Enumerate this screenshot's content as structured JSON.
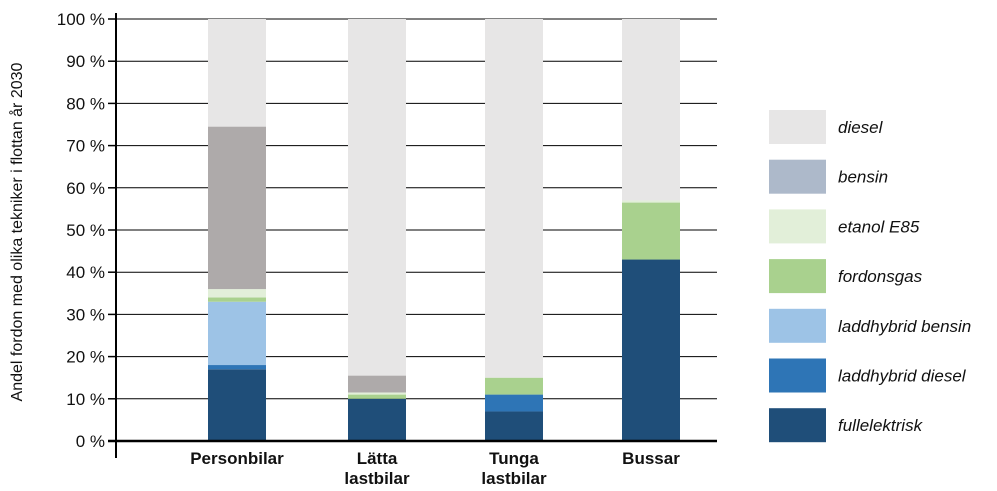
{
  "chart_data": {
    "type": "bar",
    "stacked": true,
    "title": "",
    "xlabel": "",
    "ylabel": "Andel fordon med olika tekniker i flottan år 2030",
    "ylim": [
      0,
      100
    ],
    "yticks": [
      "0 %",
      "10 %",
      "20 %",
      "30 %",
      "40 %",
      "50 %",
      "60 %",
      "70 %",
      "80 %",
      "90 %",
      "100 %"
    ],
    "grid": true,
    "legend_position": "right",
    "categories": [
      [
        "Personbilar"
      ],
      [
        "Lätta",
        "lastbilar"
      ],
      [
        "Tunga",
        "lastbilar"
      ],
      [
        "Bussar"
      ]
    ],
    "series": [
      {
        "name": "fullelektrisk",
        "color": "#1f4e79",
        "values": [
          17,
          10,
          7,
          43
        ]
      },
      {
        "name": "laddhybrid diesel",
        "color": "#2e75b6",
        "values": [
          1,
          0,
          4,
          0
        ]
      },
      {
        "name": "laddhybrid bensin",
        "color": "#9dc3e6",
        "values": [
          15,
          0,
          0,
          0
        ]
      },
      {
        "name": "fordonsgas",
        "color": "#a9d18e",
        "values": [
          1,
          1,
          4,
          13.5
        ]
      },
      {
        "name": "etanol E85",
        "color": "#e2efd9",
        "values": [
          2,
          0.5,
          0,
          0.5
        ]
      },
      {
        "name": "bensin",
        "color": "#aeaaaa",
        "values": [
          38.5,
          4,
          0,
          0
        ]
      },
      {
        "name": "diesel",
        "color": "#e7e6e6",
        "values": [
          25.5,
          84.5,
          85,
          43
        ]
      }
    ],
    "legend": [
      {
        "name": "diesel",
        "color": "#e7e6e6"
      },
      {
        "name": "bensin",
        "color": "#adb9ca"
      },
      {
        "name": "etanol E85",
        "color": "#e2efd9"
      },
      {
        "name": "fordonsgas",
        "color": "#a9d18e"
      },
      {
        "name": "laddhybrid bensin",
        "color": "#9dc3e6"
      },
      {
        "name": "laddhybrid diesel",
        "color": "#2e75b6"
      },
      {
        "name": "fullelektrisk",
        "color": "#1f4e79"
      }
    ]
  }
}
